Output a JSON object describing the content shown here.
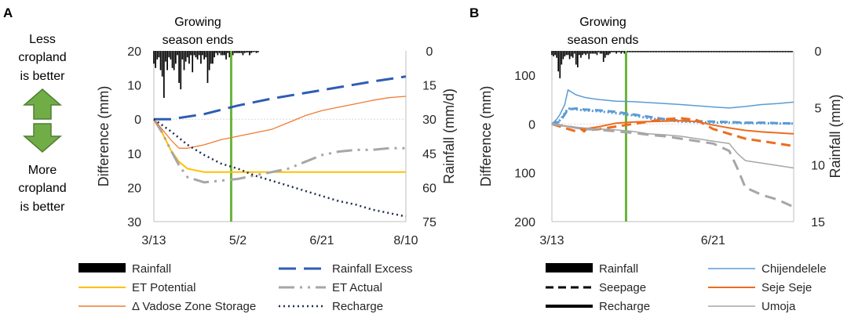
{
  "panel_a_letter": "A",
  "panel_b_letter": "B",
  "side_labels": {
    "less": [
      "Less",
      "cropland",
      "is better"
    ],
    "more": [
      "More",
      "cropland",
      "is better"
    ]
  },
  "colors": {
    "rainfall": "#000000",
    "rainfall_excess": "#2e5db3",
    "et_potential": "#ffc000",
    "et_actual": "#a6a6a6",
    "vadose": "#ed7d31",
    "recharge": "#1f2d4e",
    "growing": "#6ab43a",
    "arrow": "#70ad47",
    "arrow_stroke": "#507e32",
    "chijendelele": "#5b9bd5",
    "seje": "#ed6c1f",
    "umoja": "#a6a6a6"
  },
  "chart_data": [
    {
      "type": "line",
      "panel": "A",
      "annotation": [
        "Growing",
        "season ends"
      ],
      "growing_season_end_day": 46,
      "xlabel": "",
      "ylabel": "Difference (mm)",
      "y2label": "Rainfall (mm/d)",
      "xticks": [
        {
          "day": 0,
          "label": "3/13"
        },
        {
          "day": 50,
          "label": "5/2"
        },
        {
          "day": 100,
          "label": "6/21"
        },
        {
          "day": 150,
          "label": "8/10"
        }
      ],
      "xlim": [
        0,
        150
      ],
      "ylim": [
        30,
        -20
      ],
      "yticks": [
        {
          "value": -20,
          "label": "20"
        },
        {
          "value": -10,
          "label": "10"
        },
        {
          "value": 0,
          "label": "0"
        },
        {
          "value": 10,
          "label": "10"
        },
        {
          "value": 20,
          "label": "20"
        },
        {
          "value": 30,
          "label": "30"
        }
      ],
      "y2lim": [
        0,
        75
      ],
      "y2ticks": [
        0,
        15,
        30,
        45,
        60,
        75
      ],
      "rainfall_days": [
        0,
        1,
        2,
        3,
        4,
        5,
        6,
        7,
        8,
        9,
        10,
        11,
        12,
        13,
        14,
        15,
        16,
        17,
        18,
        19,
        20,
        21,
        22,
        23,
        24,
        25,
        26,
        27,
        28,
        29,
        30,
        31,
        32,
        33,
        34,
        35,
        36,
        37,
        38,
        39,
        40,
        41,
        42,
        43,
        44,
        45,
        46,
        47,
        48,
        49,
        50,
        51,
        52,
        53,
        54,
        55,
        56,
        57,
        58,
        59,
        60,
        61,
        62
      ],
      "rainfall_values": [
        6,
        8,
        4,
        3,
        9,
        12,
        22,
        5,
        9,
        3,
        4,
        8,
        9,
        6,
        2,
        15,
        18,
        4,
        9,
        5,
        3,
        6,
        2,
        10,
        2,
        3,
        4,
        2,
        6,
        2,
        4,
        3,
        15,
        9,
        6,
        6,
        3,
        1,
        2,
        1,
        2,
        2,
        2,
        4,
        1,
        3,
        2,
        2,
        1,
        1,
        1,
        1,
        1,
        2,
        1,
        0.8,
        0.7,
        2,
        1,
        0.6,
        0.5,
        1,
        0.7
      ],
      "series": [
        {
          "name": "Rainfall Excess",
          "color_key": "rainfall_excess",
          "dash": "22 10",
          "width": 3,
          "x": [
            0,
            10,
            30,
            50,
            70,
            100,
            130,
            150
          ],
          "y": [
            0,
            0,
            -1.5,
            -4,
            -6,
            -8.5,
            -11,
            -12.5
          ]
        },
        {
          "name": "ET Potential",
          "color_key": "et_potential",
          "dash": "",
          "width": 2,
          "x": [
            0,
            5,
            10,
            15,
            20,
            30,
            40,
            50,
            150
          ],
          "y": [
            0,
            4,
            9,
            12.5,
            14.5,
            15.5,
            15.5,
            15.5,
            15.5
          ]
        },
        {
          "name": "ET Actual",
          "color_key": "et_actual",
          "dash": "20 7 3 7 3 7",
          "width": 3,
          "x": [
            0,
            5,
            10,
            15,
            20,
            30,
            40,
            50,
            60,
            70,
            80,
            90,
            100,
            110,
            120,
            130,
            140,
            150
          ],
          "y": [
            0,
            4,
            9,
            13.5,
            17,
            18.5,
            18,
            17.5,
            16.5,
            15.5,
            14.5,
            12.5,
            10.5,
            9.5,
            9,
            9,
            8.5,
            8.5
          ]
        },
        {
          "name": "Δ Vadose Zone Storage",
          "color_key": "vadose",
          "dash": "",
          "width": 1.3,
          "x": [
            0,
            5,
            10,
            15,
            20,
            30,
            40,
            50,
            60,
            70,
            80,
            90,
            100,
            110,
            120,
            130,
            140,
            150
          ],
          "y": [
            0,
            3,
            6,
            8.5,
            8.5,
            7.5,
            6,
            5,
            4,
            3,
            1,
            -1,
            -2.5,
            -3.5,
            -4.5,
            -5.5,
            -6.3,
            -6.7
          ]
        },
        {
          "name": "Recharge",
          "color_key": "recharge",
          "dash": "2 4",
          "width": 2.5,
          "x": [
            0,
            10,
            20,
            30,
            40,
            50,
            60,
            70,
            80,
            90,
            100,
            110,
            120,
            130,
            140,
            150
          ],
          "y": [
            0,
            3.5,
            7.5,
            10.5,
            13,
            14.5,
            16.5,
            18,
            19.5,
            21,
            22.5,
            24,
            25,
            26.5,
            27.5,
            28.5
          ]
        }
      ],
      "legend": [
        {
          "label": "Rainfall",
          "kind": "bar",
          "color_key": "rainfall"
        },
        {
          "label": "Rainfall Excess",
          "kind": "line",
          "color_key": "rainfall_excess",
          "dash": "22 10",
          "width": 3
        },
        {
          "label": "ET Potential",
          "kind": "line",
          "color_key": "et_potential",
          "dash": "",
          "width": 2
        },
        {
          "label": "ET Actual",
          "kind": "line",
          "color_key": "et_actual",
          "dash": "20 7 3 7 3 7",
          "width": 3
        },
        {
          "label": "Δ Vadose Zone Storage",
          "kind": "line",
          "color_key": "vadose",
          "dash": "",
          "width": 1.5
        },
        {
          "label": "Recharge",
          "kind": "line",
          "color_key": "recharge",
          "dash": "2 4",
          "width": 2.5
        }
      ]
    },
    {
      "type": "line",
      "panel": "B",
      "annotation": [
        "Growing",
        "season ends"
      ],
      "growing_season_end_day": 46,
      "xlabel": "",
      "ylabel": "Difference (mm)",
      "y2label": "Rainfall (mm)",
      "xticks": [
        {
          "day": 0,
          "label": "3/13"
        },
        {
          "day": 100,
          "label": "6/21"
        }
      ],
      "xlim": [
        0,
        150
      ],
      "ylim": [
        200,
        -150
      ],
      "yticks": [
        {
          "value": -100,
          "label": "100"
        },
        {
          "value": 0,
          "label": "0"
        },
        {
          "value": 100,
          "label": "100"
        },
        {
          "value": 200,
          "label": "200"
        }
      ],
      "y2lim": [
        0,
        15
      ],
      "y2ticks": [
        0,
        5,
        10,
        15
      ],
      "rainfall_days": [
        0,
        1,
        2,
        3,
        4,
        5,
        6,
        7,
        8,
        9,
        10,
        11,
        12,
        13,
        14,
        15,
        16,
        17,
        18,
        19,
        20,
        21,
        22,
        23,
        24,
        25,
        26,
        27,
        28,
        29,
        30,
        31,
        32,
        33,
        34,
        35,
        36,
        37,
        38,
        39,
        40,
        41,
        42,
        43,
        44,
        45,
        46,
        47,
        48,
        49,
        50,
        51,
        52,
        53,
        54,
        55,
        56,
        57,
        58,
        59,
        60,
        61,
        62,
        63,
        64,
        65,
        66,
        67,
        68,
        69,
        70,
        71,
        72,
        73,
        74,
        75,
        76,
        77,
        78,
        79,
        80,
        81,
        82,
        83,
        84,
        85,
        86,
        87,
        88,
        89,
        90,
        91,
        92,
        93,
        94,
        95,
        96,
        97,
        98,
        99,
        100,
        101,
        102,
        103,
        104,
        105,
        106,
        107,
        108,
        109,
        110,
        111,
        112,
        113,
        114,
        115,
        116,
        117,
        118,
        119,
        120,
        121,
        122,
        123,
        124,
        125,
        126,
        127,
        128,
        129,
        130,
        131,
        132,
        133,
        134,
        135,
        136,
        137,
        138,
        139,
        140,
        141,
        142,
        143,
        144,
        145,
        146,
        147,
        148,
        149
      ],
      "rainfall_values": [
        0.3,
        0.4,
        0.3,
        0.5,
        1.5,
        2,
        1,
        0.6,
        0.4,
        0.3,
        0.3,
        0.6,
        0.4,
        0.5,
        0.2,
        1,
        1.2,
        0.3,
        0.5,
        0.3,
        0.2,
        0.3,
        0.2,
        0.6,
        0.2,
        0.2,
        0.2,
        0.2,
        0.3,
        0.1,
        0.2,
        0.2,
        0.8,
        0.5,
        0.3,
        0.3,
        0.2,
        0.1,
        0.1,
        0.1,
        0.2,
        0.1,
        0.1,
        0.2,
        0.1,
        0.2,
        0.1,
        0.1,
        0.1,
        0.1,
        0.1,
        0.1,
        0.1,
        0.1,
        0.1,
        0.1,
        0.1,
        0.1,
        0.1,
        0.1,
        0.1,
        0.1,
        0.1,
        0.1,
        0.1,
        0.1,
        0.1,
        0.1,
        0.1,
        0.1,
        0.1,
        0.1,
        0.1,
        0.1,
        0.1,
        0.1,
        0.1,
        0.1,
        0.1,
        0.1,
        0.1,
        0.1,
        0.1,
        0.1,
        0.1,
        0.1,
        0.1,
        0.1,
        0.1,
        0.1,
        0.1,
        0.1,
        0.1,
        0.1,
        0.1,
        0.1,
        0.1,
        0.1,
        0.1,
        0.1,
        0.1,
        0.1,
        0.1,
        0.1,
        0.1,
        0.1,
        0.1,
        0.1,
        0.1,
        0.1,
        0.1,
        0.1,
        0.1,
        0.1,
        0.1,
        0.1,
        0.1,
        0.1,
        0.1,
        0.1,
        0.1,
        0.1,
        0.1,
        0.1,
        0.1,
        0.1,
        0.1,
        0.1,
        0.1,
        0.1,
        0.1,
        0.1,
        0.1,
        0.1,
        0.1,
        0.1,
        0.1,
        0.1,
        0.1,
        0.1,
        0.1,
        0.1,
        0.1,
        0.1,
        0.1,
        0.1,
        0.1,
        0.1,
        0.1,
        0.1
      ],
      "series": [
        {
          "name": "Chijendelele Rainfall Excess",
          "color_key": "chijendelele",
          "dash": "",
          "width": 1.5,
          "x": [
            0,
            3,
            5,
            8,
            10,
            15,
            20,
            25,
            30,
            40,
            50,
            60,
            80,
            100,
            110,
            120,
            130,
            140,
            150
          ],
          "y": [
            0,
            -10,
            -20,
            -40,
            -70,
            -60,
            -55,
            -52,
            -50,
            -47,
            -46,
            -44,
            -40,
            -35,
            -33,
            -36,
            -40,
            -42,
            -45
          ]
        },
        {
          "name": "Chijendelele Seepage",
          "color_key": "chijendelele",
          "dash": "10 6",
          "width": 3,
          "x": [
            0,
            5,
            8,
            10,
            15,
            20,
            30,
            40,
            50,
            60,
            70,
            80,
            90,
            100,
            110,
            120,
            130,
            140,
            150
          ],
          "y": [
            0,
            -5,
            -20,
            -30,
            -32,
            -30,
            -28,
            -25,
            -20,
            -15,
            -10,
            -7,
            -6,
            -5,
            -4,
            -3,
            -3,
            -2,
            -1
          ]
        },
        {
          "name": "Chijendelele Recharge",
          "color_key": "chijendelele",
          "dash": "2 3",
          "width": 3,
          "x": [
            0,
            5,
            8,
            10,
            15,
            20,
            30,
            40,
            50,
            60,
            70,
            80,
            90,
            100,
            110,
            120,
            130,
            140,
            150
          ],
          "y": [
            0,
            -8,
            -22,
            -32,
            -30,
            -28,
            -26,
            -22,
            -18,
            -12,
            -8,
            -5,
            -4,
            -3,
            -3,
            -2,
            -2,
            -1,
            -1
          ]
        },
        {
          "name": "Seje Seje Rainfall Excess",
          "color_key": "seje",
          "dash": "",
          "width": 2,
          "x": [
            0,
            10,
            20,
            30,
            40,
            50,
            60,
            70,
            80,
            90,
            100,
            110,
            120,
            130,
            140,
            150
          ],
          "y": [
            0,
            5,
            10,
            5,
            -2,
            -4,
            -5,
            -6,
            -7,
            -5,
            2,
            8,
            13,
            16,
            18,
            20
          ]
        },
        {
          "name": "Seje Seje Seepage",
          "color_key": "seje",
          "dash": "12 7",
          "width": 3,
          "x": [
            0,
            10,
            15,
            18,
            20,
            22,
            25,
            30,
            40,
            50,
            60,
            70,
            80,
            90,
            100,
            110,
            120,
            130,
            140,
            150
          ],
          "y": [
            0,
            10,
            15,
            10,
            15,
            8,
            12,
            10,
            5,
            0,
            -5,
            -10,
            -12,
            -8,
            10,
            20,
            30,
            35,
            40,
            45
          ]
        },
        {
          "name": "Umoja Rainfall Excess",
          "color_key": "umoja",
          "dash": "",
          "width": 1.5,
          "x": [
            0,
            10,
            20,
            30,
            40,
            50,
            60,
            70,
            80,
            90,
            100,
            110,
            115,
            120,
            130,
            140,
            150
          ],
          "y": [
            0,
            5,
            8,
            10,
            12,
            15,
            20,
            22,
            25,
            30,
            35,
            40,
            60,
            75,
            80,
            85,
            90
          ]
        },
        {
          "name": "Umoja Seepage",
          "color_key": "umoja",
          "dash": "14 8",
          "width": 3,
          "x": [
            0,
            10,
            20,
            30,
            40,
            50,
            60,
            70,
            80,
            90,
            100,
            110,
            115,
            120,
            130,
            140,
            150
          ],
          "y": [
            0,
            5,
            10,
            12,
            15,
            18,
            22,
            25,
            30,
            35,
            40,
            55,
            90,
            130,
            145,
            155,
            170
          ]
        }
      ],
      "legend": [
        {
          "label": "Rainfall",
          "kind": "bar",
          "color_key": "rainfall"
        },
        {
          "label": "Chijendelele",
          "kind": "line",
          "color_key": "chijendelele",
          "dash": "",
          "width": 1.5
        },
        {
          "label": "Seepage",
          "kind": "line",
          "color_key": "rainfall",
          "dash": "10 6",
          "width": 3
        },
        {
          "label": "Seje Seje",
          "kind": "line",
          "color_key": "seje",
          "dash": "",
          "width": 2
        },
        {
          "label": "Recharge",
          "kind": "line",
          "color_key": "rainfall",
          "dash": "",
          "width": 4
        },
        {
          "label": "Umoja",
          "kind": "line",
          "color_key": "umoja",
          "dash": "",
          "width": 1.5
        }
      ]
    }
  ]
}
